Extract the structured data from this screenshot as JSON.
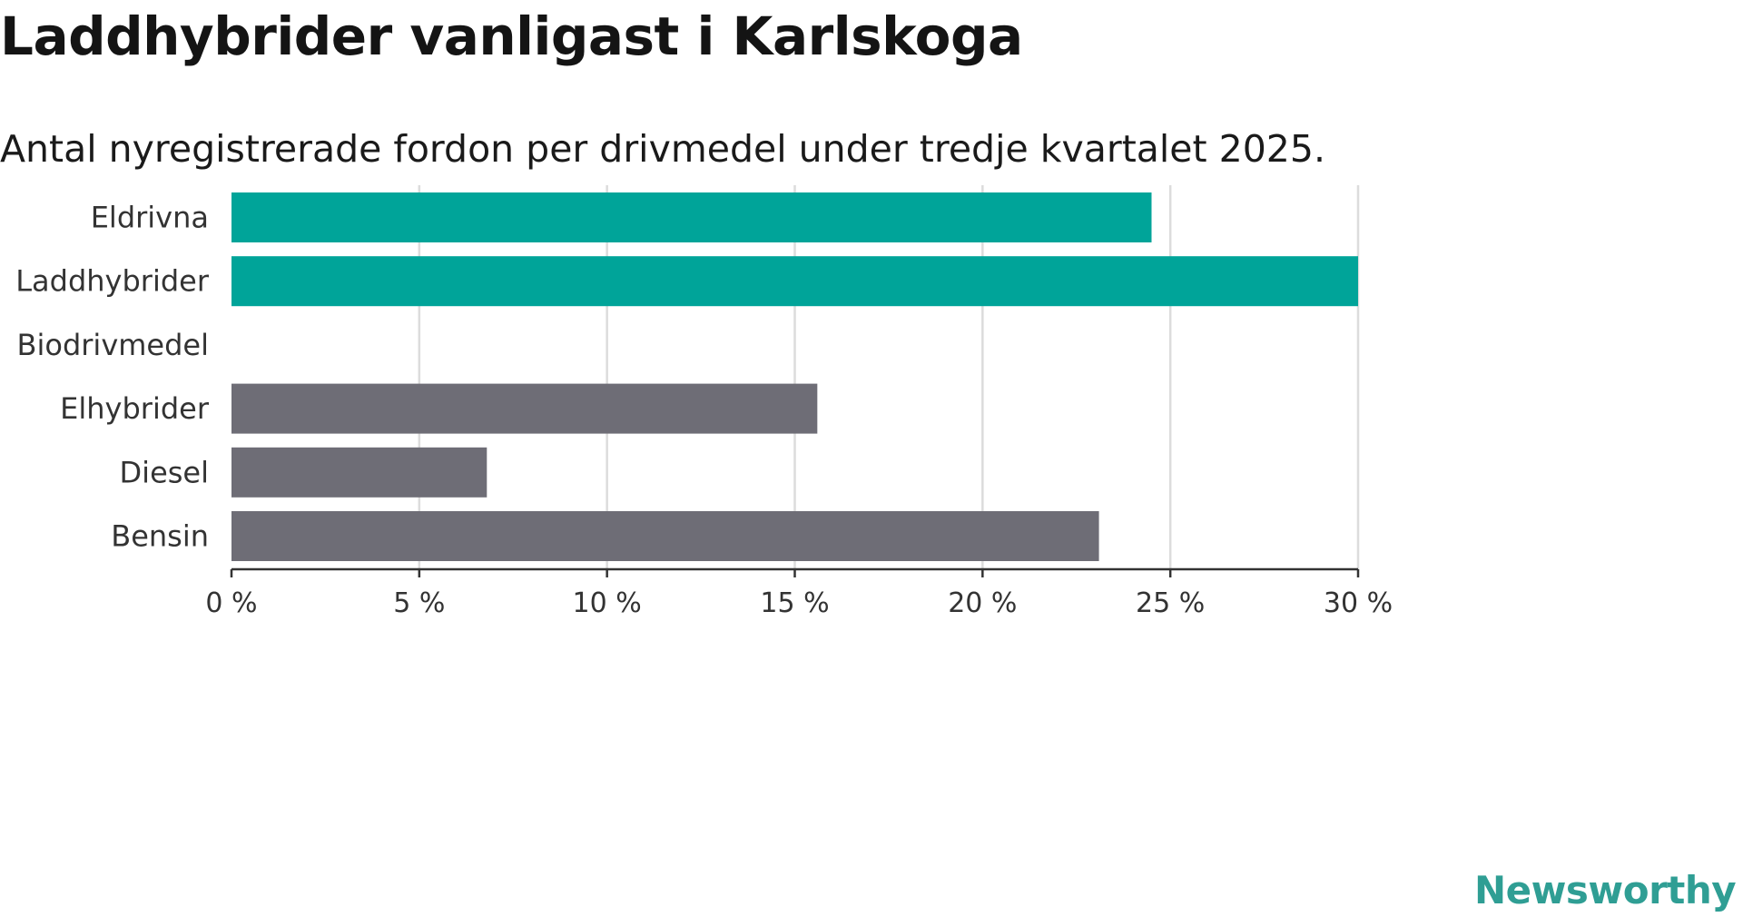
{
  "chart_data": {
    "type": "bar",
    "orientation": "horizontal",
    "title": "Laddhybrider vanligast i Karlskoga",
    "subtitle": "Antal nyregistrerade fordon per drivmedel under tredje kvartalet 2025.",
    "categories": [
      "Eldrivna",
      "Laddhybrider",
      "Biodrivmedel",
      "Elhybrider",
      "Diesel",
      "Bensin"
    ],
    "values": [
      24.5,
      30.0,
      0,
      15.6,
      6.8,
      23.1
    ],
    "bar_colors": [
      "#00a499",
      "#00a499",
      "#00a499",
      "#6e6d76",
      "#6e6d76",
      "#6e6d76"
    ],
    "xlim": [
      0,
      30
    ],
    "xticks": [
      0,
      5,
      10,
      15,
      20,
      25,
      30
    ],
    "xtick_labels": [
      "0 %",
      "5 %",
      "10 %",
      "15 %",
      "20 %",
      "25 %",
      "30 %"
    ],
    "xlabel": "",
    "ylabel": "",
    "grid": true
  },
  "branding": {
    "logo_text": "Newsworthy",
    "logo_color": "#2f9e94"
  },
  "colors": {
    "grid": "#dcdcdc",
    "axis": "#333333",
    "label_text": "#333333"
  }
}
